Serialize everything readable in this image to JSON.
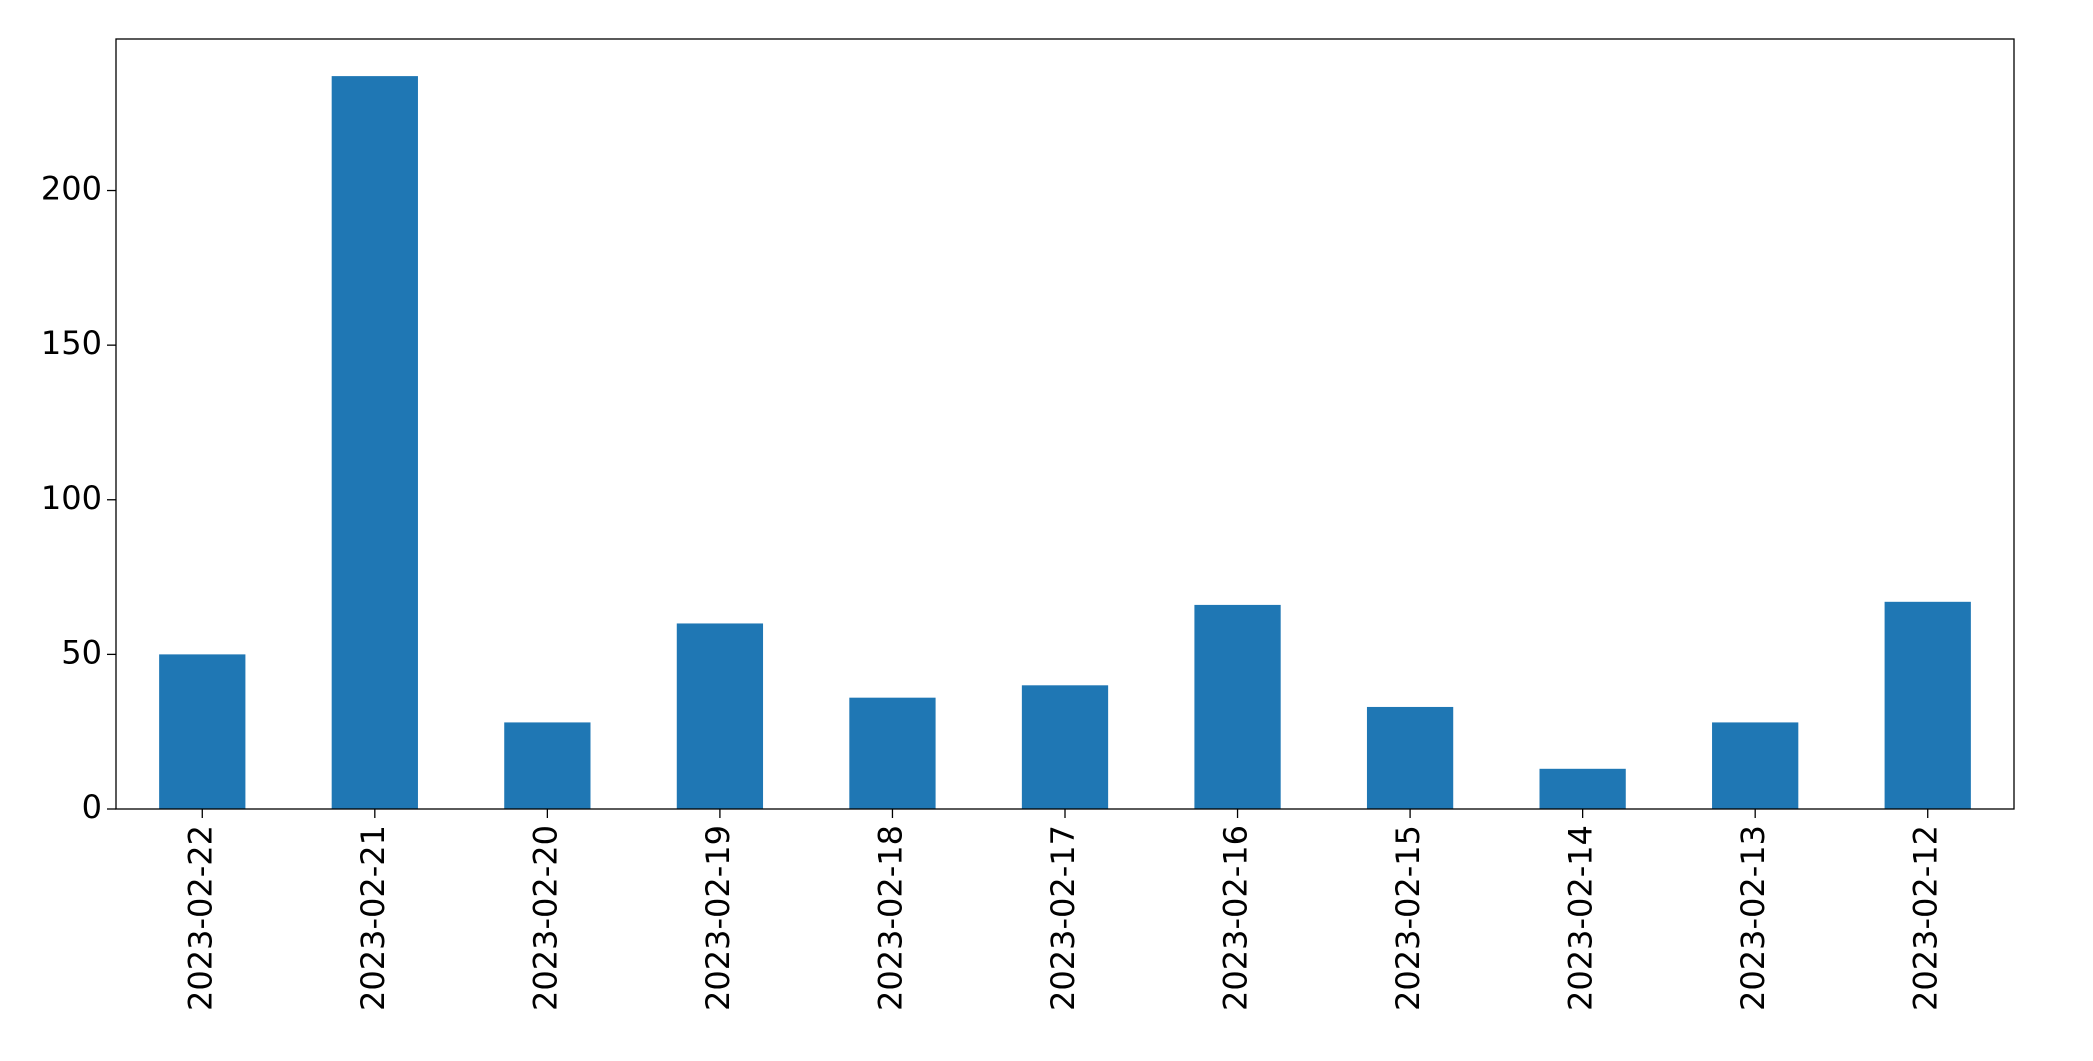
{
  "chart_data": {
    "type": "bar",
    "categories": [
      "2023-02-22",
      "2023-02-21",
      "2023-02-20",
      "2023-02-19",
      "2023-02-18",
      "2023-02-17",
      "2023-02-16",
      "2023-02-15",
      "2023-02-14",
      "2023-02-13",
      "2023-02-12"
    ],
    "values": [
      50,
      237,
      28,
      60,
      36,
      40,
      66,
      33,
      13,
      28,
      67
    ],
    "color": "#1f77b4",
    "ylim": [
      0,
      249
    ],
    "yticks": [
      0,
      50,
      100,
      150,
      200
    ],
    "grid": false
  }
}
